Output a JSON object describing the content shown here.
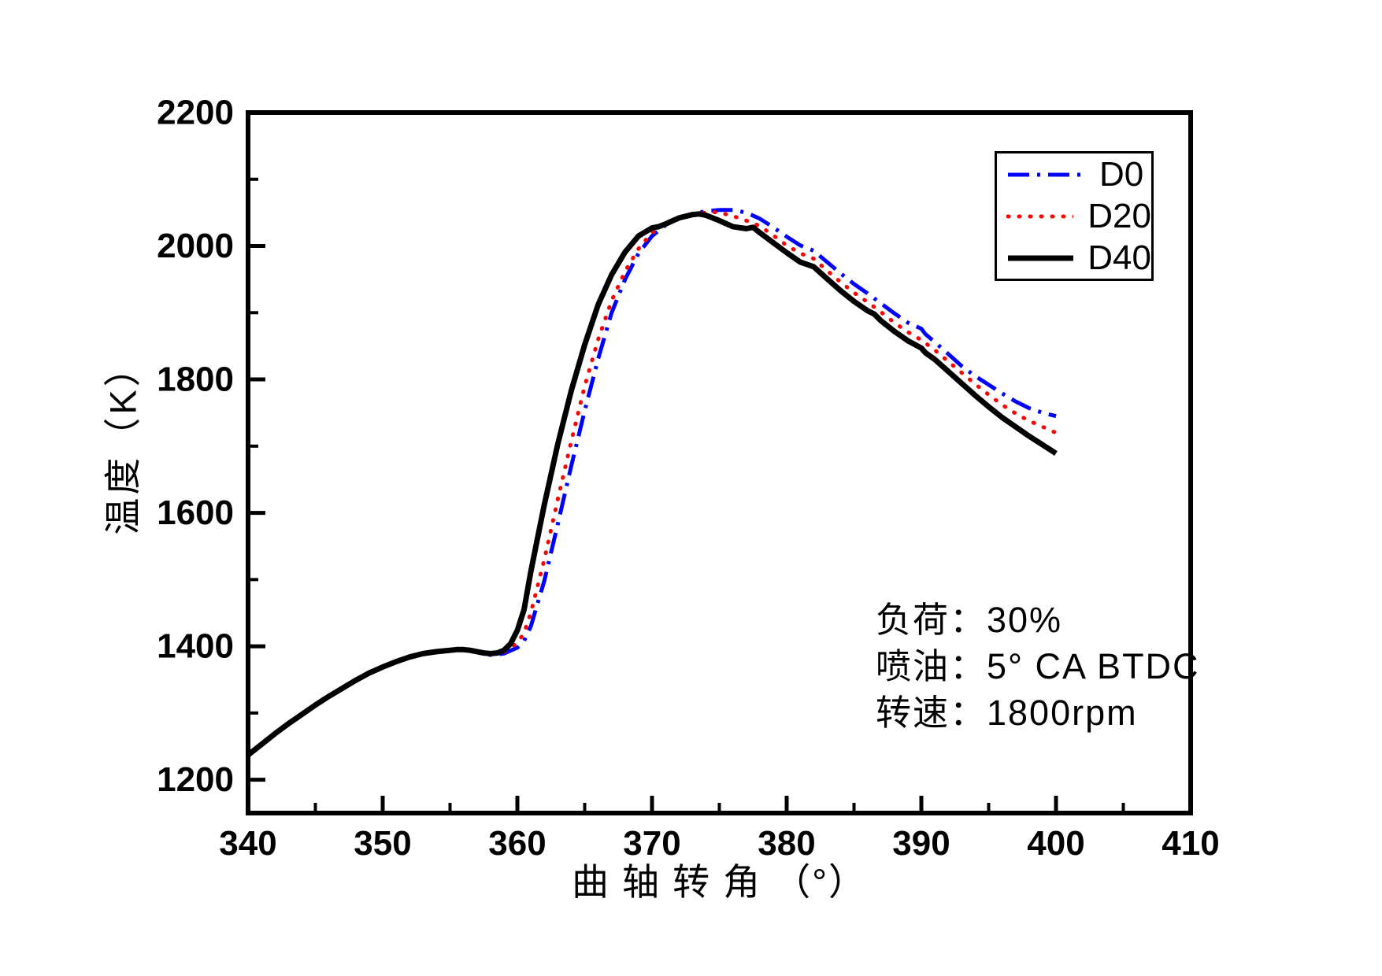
{
  "chart_data": {
    "type": "line",
    "title": "",
    "xlabel": "曲 轴 转 角 （°）",
    "ylabel": "温度（K）",
    "xlim": [
      340,
      410
    ],
    "ylim": [
      1150,
      2200
    ],
    "grid": false,
    "legend_position": "top-right",
    "x_major_ticks": [
      340,
      350,
      360,
      370,
      380,
      390,
      400,
      410
    ],
    "x_minor_ticks": [
      345,
      355,
      365,
      375,
      385,
      395,
      405
    ],
    "y_major_ticks": [
      1200,
      1400,
      1600,
      1800,
      2000,
      2200
    ],
    "y_minor_ticks": [
      1300,
      1500,
      1700,
      1900,
      2100
    ],
    "annotation": {
      "lines": [
        "负荷：30%",
        "喷油：5° CA BTDC",
        "转速：1800rpm"
      ]
    },
    "axis_color": "#000000",
    "series": [
      {
        "name": "D0",
        "color": "#0000ff",
        "style": "dashdot",
        "width": 5,
        "points": [
          [
            340,
            1237
          ],
          [
            341,
            1253
          ],
          [
            342,
            1269
          ],
          [
            343,
            1284
          ],
          [
            344,
            1298
          ],
          [
            345,
            1312
          ],
          [
            346,
            1325
          ],
          [
            347,
            1337
          ],
          [
            348,
            1349
          ],
          [
            349,
            1360
          ],
          [
            350,
            1369
          ],
          [
            351,
            1377
          ],
          [
            352,
            1384
          ],
          [
            353,
            1389
          ],
          [
            354,
            1392
          ],
          [
            355,
            1394
          ],
          [
            355.5,
            1395
          ],
          [
            356,
            1395
          ],
          [
            356.5,
            1394
          ],
          [
            357,
            1392
          ],
          [
            357.5,
            1390
          ],
          [
            358,
            1387
          ],
          [
            359,
            1389
          ],
          [
            360,
            1398
          ],
          [
            360.5,
            1408
          ],
          [
            361,
            1430
          ],
          [
            362,
            1498
          ],
          [
            363,
            1583
          ],
          [
            364,
            1670
          ],
          [
            365,
            1753
          ],
          [
            366,
            1831
          ],
          [
            367,
            1900
          ],
          [
            368,
            1950
          ],
          [
            369,
            1989
          ],
          [
            370,
            2015
          ],
          [
            371,
            2031
          ],
          [
            372,
            2042
          ],
          [
            373,
            2048
          ],
          [
            374,
            2052
          ],
          [
            375,
            2054
          ],
          [
            376,
            2054
          ],
          [
            377,
            2050
          ],
          [
            378,
            2041
          ],
          [
            379,
            2028
          ],
          [
            380,
            2014
          ],
          [
            381,
            2001
          ],
          [
            382,
            1993
          ],
          [
            383,
            1976
          ],
          [
            384,
            1959
          ],
          [
            385,
            1943
          ],
          [
            386,
            1929
          ],
          [
            387,
            1914
          ],
          [
            388,
            1899
          ],
          [
            389,
            1885
          ],
          [
            390,
            1876
          ],
          [
            390.3,
            1868
          ],
          [
            391,
            1856
          ],
          [
            392,
            1838
          ],
          [
            393,
            1820
          ],
          [
            394,
            1805
          ],
          [
            395,
            1792
          ],
          [
            396,
            1779
          ],
          [
            397,
            1767
          ],
          [
            398,
            1757
          ],
          [
            399,
            1750
          ],
          [
            400,
            1745
          ]
        ]
      },
      {
        "name": "D20",
        "color": "#ff0000",
        "style": "dot",
        "width": 5,
        "points": [
          [
            340,
            1237
          ],
          [
            341,
            1253
          ],
          [
            342,
            1269
          ],
          [
            343,
            1284
          ],
          [
            344,
            1298
          ],
          [
            345,
            1312
          ],
          [
            346,
            1325
          ],
          [
            347,
            1337
          ],
          [
            348,
            1349
          ],
          [
            349,
            1360
          ],
          [
            350,
            1369
          ],
          [
            351,
            1377
          ],
          [
            352,
            1384
          ],
          [
            353,
            1389
          ],
          [
            354,
            1392
          ],
          [
            355,
            1394
          ],
          [
            355.5,
            1395
          ],
          [
            356,
            1395
          ],
          [
            356.5,
            1394
          ],
          [
            357,
            1392
          ],
          [
            357.5,
            1390
          ],
          [
            358,
            1388
          ],
          [
            359,
            1391
          ],
          [
            360,
            1405
          ],
          [
            360.5,
            1420
          ],
          [
            361,
            1450
          ],
          [
            362,
            1530
          ],
          [
            363,
            1620
          ],
          [
            364,
            1707
          ],
          [
            365,
            1790
          ],
          [
            366,
            1860
          ],
          [
            367,
            1918
          ],
          [
            368,
            1962
          ],
          [
            369,
            1996
          ],
          [
            370,
            2020
          ],
          [
            371,
            2034
          ],
          [
            372,
            2043
          ],
          [
            373,
            2048
          ],
          [
            374,
            2050
          ],
          [
            374.5,
            2051
          ],
          [
            375,
            2050
          ],
          [
            376,
            2045
          ],
          [
            377,
            2038
          ],
          [
            378,
            2030
          ],
          [
            379,
            2016
          ],
          [
            380,
            2001
          ],
          [
            381,
            1989
          ],
          [
            382,
            1981
          ],
          [
            383,
            1963
          ],
          [
            384,
            1946
          ],
          [
            385,
            1930
          ],
          [
            386,
            1916
          ],
          [
            387,
            1901
          ],
          [
            388,
            1885
          ],
          [
            389,
            1871
          ],
          [
            390,
            1859
          ],
          [
            391,
            1844
          ],
          [
            392,
            1827
          ],
          [
            393,
            1810
          ],
          [
            394,
            1793
          ],
          [
            395,
            1777
          ],
          [
            396,
            1762
          ],
          [
            397,
            1749
          ],
          [
            398,
            1738
          ],
          [
            399,
            1729
          ],
          [
            400,
            1720
          ]
        ]
      },
      {
        "name": "D40",
        "color": "#000000",
        "style": "solid",
        "width": 7,
        "points": [
          [
            340,
            1237
          ],
          [
            341,
            1253
          ],
          [
            342,
            1269
          ],
          [
            343,
            1284
          ],
          [
            344,
            1298
          ],
          [
            345,
            1312
          ],
          [
            346,
            1325
          ],
          [
            347,
            1337
          ],
          [
            348,
            1349
          ],
          [
            349,
            1360
          ],
          [
            350,
            1369
          ],
          [
            351,
            1377
          ],
          [
            352,
            1384
          ],
          [
            353,
            1389
          ],
          [
            354,
            1392
          ],
          [
            355,
            1394
          ],
          [
            355.5,
            1395
          ],
          [
            356,
            1395
          ],
          [
            356.5,
            1394
          ],
          [
            357,
            1392
          ],
          [
            357.5,
            1390
          ],
          [
            358,
            1389
          ],
          [
            358.5,
            1390
          ],
          [
            359,
            1394
          ],
          [
            359.5,
            1404
          ],
          [
            360,
            1424
          ],
          [
            360.5,
            1455
          ],
          [
            361,
            1512
          ],
          [
            361.5,
            1562
          ],
          [
            362,
            1612
          ],
          [
            363,
            1703
          ],
          [
            364,
            1783
          ],
          [
            365,
            1852
          ],
          [
            366,
            1912
          ],
          [
            367,
            1957
          ],
          [
            368,
            1991
          ],
          [
            369,
            2015
          ],
          [
            370,
            2027
          ],
          [
            370.5,
            2029
          ],
          [
            371,
            2033
          ],
          [
            372,
            2042
          ],
          [
            373,
            2047
          ],
          [
            373.5,
            2048
          ],
          [
            374,
            2046
          ],
          [
            375,
            2038
          ],
          [
            376,
            2029
          ],
          [
            377,
            2026
          ],
          [
            377.5,
            2028
          ],
          [
            378,
            2020
          ],
          [
            379,
            2005
          ],
          [
            380,
            1990
          ],
          [
            381,
            1976
          ],
          [
            382,
            1969
          ],
          [
            383,
            1951
          ],
          [
            384,
            1933
          ],
          [
            385,
            1917
          ],
          [
            386,
            1903
          ],
          [
            386.5,
            1898
          ],
          [
            387,
            1888
          ],
          [
            388,
            1872
          ],
          [
            389,
            1858
          ],
          [
            390,
            1847
          ],
          [
            390.3,
            1840
          ],
          [
            391,
            1830
          ],
          [
            392,
            1812
          ],
          [
            393,
            1794
          ],
          [
            394,
            1776
          ],
          [
            395,
            1759
          ],
          [
            396,
            1743
          ],
          [
            397,
            1729
          ],
          [
            398,
            1715
          ],
          [
            399,
            1702
          ],
          [
            400,
            1689
          ]
        ]
      }
    ]
  }
}
